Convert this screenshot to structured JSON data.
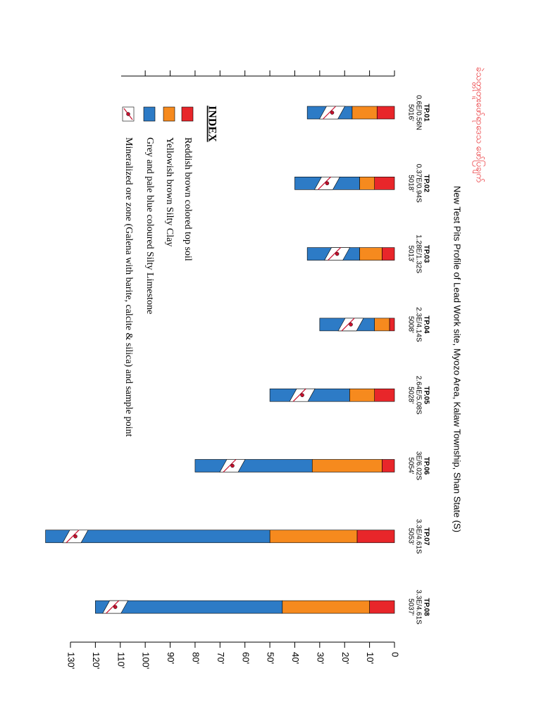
{
  "chart_data": {
    "type": "bar",
    "title": "New Test Pits Profile of Lead Work site, Myozo Area, Kalaw Township, Shan State (S)",
    "subtitle": "ခဲသတ္တုတူးဖော်ရာဒေသ ဖော်ပြချက်",
    "legend_title": "INDEX",
    "categories": [
      "TP.01",
      "TP.02",
      "TP.03",
      "TP.04",
      "TP.05",
      "TP.06",
      "TP.07",
      "TP.08"
    ],
    "coordinates": [
      "0.6E/0.56N",
      "0.37E/0.94S",
      "1.28E/1.32S",
      "2.3E/4.14S",
      "2.64E/5.08S",
      "3E/6.02S",
      "3.3E/4.61S",
      "3.3E/4.61S"
    ],
    "elevations": [
      "5016'",
      "5018'",
      "5013'",
      "5008'",
      "5028'",
      "5054'",
      "5053'",
      "5037'"
    ],
    "series": [
      {
        "name": "Reddish brown colored top soil",
        "color": "#e8262a",
        "values": [
          7,
          8,
          5,
          2,
          8,
          5,
          15,
          10
        ]
      },
      {
        "name": "Yellowish brown Silty Clay",
        "color": "#f68a1e",
        "values": [
          10,
          6,
          9,
          6,
          10,
          28,
          35,
          35
        ]
      },
      {
        "name": "Grey and pale blue coloured Silty Limestone",
        "color": "#2d7bc6",
        "values": [
          18,
          26,
          21,
          22,
          32,
          47,
          90,
          75
        ]
      }
    ],
    "ore_zone": {
      "name": "Mineralized ore zone (Galena with barite, calcite & silica) and sample point",
      "values": [
        25,
        27,
        23,
        17.5,
        37,
        65,
        128,
        112
      ]
    },
    "ylim": [
      0,
      130
    ],
    "yticks": [
      0,
      {
        "value": 10,
        "label": "10'"
      },
      {
        "value": 20,
        "label": "20'"
      },
      {
        "value": 30,
        "label": "30'"
      },
      {
        "value": 40,
        "label": "40'"
      },
      {
        "value": 50,
        "label": "50'"
      },
      {
        "value": 60,
        "label": "60'"
      },
      {
        "value": 70,
        "label": "70'"
      },
      {
        "value": 80,
        "label": "80'"
      },
      {
        "value": 90,
        "label": "90'"
      },
      {
        "value": 100,
        "label": "100'"
      },
      {
        "value": 110,
        "label": "110'"
      },
      {
        "value": 120,
        "label": "120'"
      },
      {
        "value": 130,
        "label": "130'"
      }
    ]
  }
}
